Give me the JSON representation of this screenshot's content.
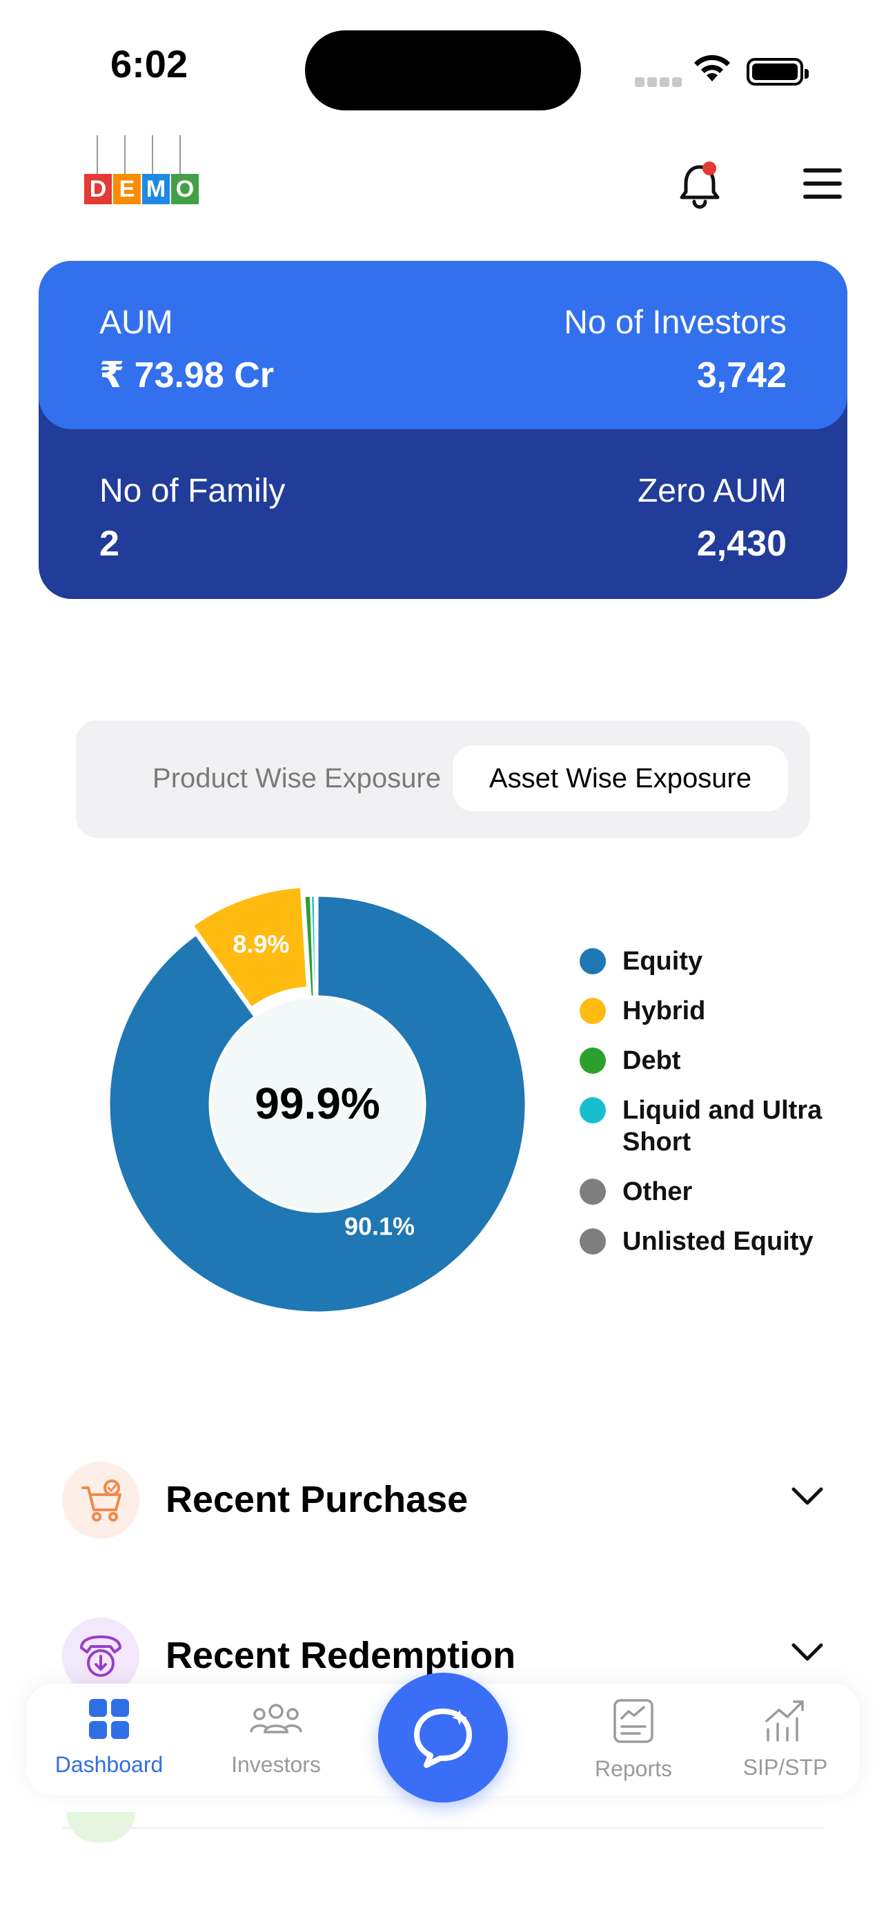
{
  "status_bar": {
    "time": "6:02"
  },
  "header": {
    "logo_letters": [
      "D",
      "E",
      "M",
      "O"
    ],
    "logo_colors": [
      "#e53935",
      "#fb8c00",
      "#1e88e5",
      "#43a047"
    ],
    "notification_dot_color": "#e53935"
  },
  "stats": {
    "aum_label": "AUM",
    "aum_value": "₹ 73.98 Cr",
    "investors_label": "No of Investors",
    "investors_value": "3,742",
    "family_label": "No of Family",
    "family_value": "2",
    "zero_aum_label": "Zero AUM",
    "zero_aum_value": "2,430",
    "colors": {
      "top": "#3270ee",
      "bottom": "#213c99"
    }
  },
  "tabs": [
    {
      "label": "Product Wise Exposure",
      "active": false
    },
    {
      "label": "Asset Wise Exposure",
      "active": true
    }
  ],
  "chart_data": {
    "type": "pie",
    "variant": "donut",
    "center_label": "99.9%",
    "slices": [
      {
        "label": "Equity",
        "value": 90.1,
        "color": "#1f77b4",
        "data_label": "90.1%"
      },
      {
        "label": "Hybrid",
        "value": 8.9,
        "color": "#ffbb10",
        "data_label": "8.9%"
      },
      {
        "label": "Debt",
        "value": 0.5,
        "color": "#2ca02c"
      },
      {
        "label": "Liquid and Ultra Short",
        "value": 0.3,
        "color": "#17becf"
      },
      {
        "label": "Other",
        "value": 0.1,
        "color": "#7f7f7f"
      },
      {
        "label": "Unlisted Equity",
        "value": 0.1,
        "color": "#7f7f7f"
      }
    ],
    "legend_position": "right"
  },
  "sections": [
    {
      "title": "Recent Purchase",
      "icon": "cart-check-icon",
      "icon_bg": "#fdeee8"
    },
    {
      "title": "Recent Redemption",
      "icon": "redemption-icon",
      "icon_bg": "#f3e8fb"
    }
  ],
  "bottom_nav": {
    "items": [
      {
        "label": "Dashboard",
        "icon": "dashboard-grid-icon",
        "active": true
      },
      {
        "label": "Investors",
        "icon": "investors-group-icon",
        "active": false
      },
      {
        "label": "Reports",
        "icon": "reports-icon",
        "active": false
      },
      {
        "label": "SIP/STP",
        "icon": "sip-chart-icon",
        "active": false
      }
    ],
    "fab_icon": "ai-chat-icon",
    "accent": "#2f6fe4"
  }
}
